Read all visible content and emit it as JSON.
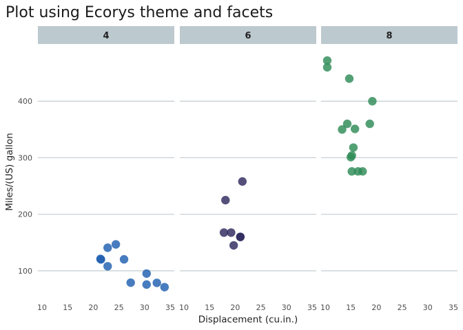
{
  "chart_data": {
    "type": "scatter",
    "title": "Plot using Ecorys theme and facets",
    "xlabel": "Displacement (cu.in.)",
    "ylabel": "Miles/(US) gallon",
    "xlim": [
      10,
      35
    ],
    "ylim": [
      50,
      500
    ],
    "x_ticks": [
      10,
      15,
      20,
      25,
      30,
      35
    ],
    "y_ticks": [
      100,
      200,
      300,
      400
    ],
    "grid": "horizontal major only",
    "facets": [
      {
        "label": "4",
        "color": "#1f5fb0",
        "points": [
          {
            "x": 22.8,
            "y": 108
          },
          {
            "x": 24.4,
            "y": 146.7
          },
          {
            "x": 22.8,
            "y": 140.8
          },
          {
            "x": 32.4,
            "y": 78.7
          },
          {
            "x": 30.4,
            "y": 75.7
          },
          {
            "x": 33.9,
            "y": 71.1
          },
          {
            "x": 21.5,
            "y": 120.1
          },
          {
            "x": 27.3,
            "y": 79
          },
          {
            "x": 26.0,
            "y": 120.3
          },
          {
            "x": 30.4,
            "y": 95.1
          },
          {
            "x": 21.4,
            "y": 121
          }
        ]
      },
      {
        "label": "6",
        "color": "#2e2a5e",
        "points": [
          {
            "x": 21.0,
            "y": 160
          },
          {
            "x": 21.0,
            "y": 160
          },
          {
            "x": 21.4,
            "y": 258
          },
          {
            "x": 18.1,
            "y": 225
          },
          {
            "x": 19.2,
            "y": 167.6
          },
          {
            "x": 17.8,
            "y": 167.6
          },
          {
            "x": 19.7,
            "y": 145
          }
        ]
      },
      {
        "label": "8",
        "color": "#2e8b57",
        "points": [
          {
            "x": 18.7,
            "y": 360
          },
          {
            "x": 14.3,
            "y": 360
          },
          {
            "x": 16.4,
            "y": 275.8
          },
          {
            "x": 17.3,
            "y": 275.8
          },
          {
            "x": 15.2,
            "y": 275.8
          },
          {
            "x": 10.4,
            "y": 472
          },
          {
            "x": 10.4,
            "y": 460
          },
          {
            "x": 14.7,
            "y": 440
          },
          {
            "x": 15.5,
            "y": 318
          },
          {
            "x": 15.2,
            "y": 304
          },
          {
            "x": 13.3,
            "y": 350
          },
          {
            "x": 19.2,
            "y": 400
          },
          {
            "x": 15.8,
            "y": 351
          },
          {
            "x": 15.0,
            "y": 301
          }
        ]
      }
    ]
  }
}
